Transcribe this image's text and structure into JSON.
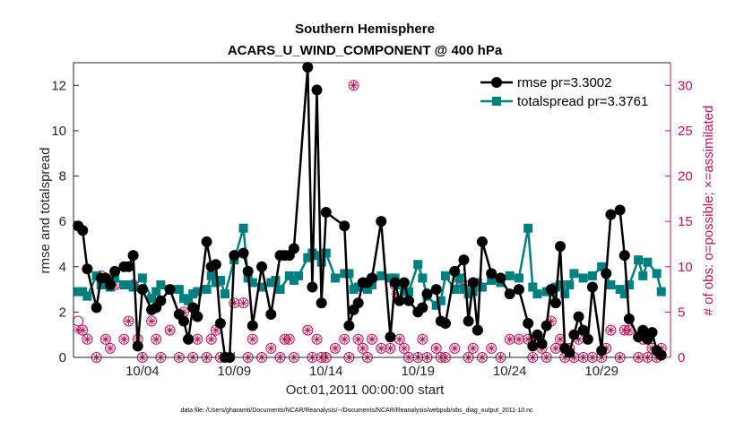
{
  "chart_data": {
    "type": "line",
    "title": [
      "Southern Hemisphere",
      "ACARS_U_WIND_COMPONENT @ 400 hPa"
    ],
    "xlabel": "Oct.01,2011 00:00:00 start",
    "ylabel": "rmse and totalspread",
    "y2label": "# of obs: o=possible; ×=assimilated",
    "footnote": "data file: /Users/gharamti/Documents/NCAR/Reanalysis/~/Documents/NCAR/Reanalysis/webpub/obs_diag_output_2011-10.nc",
    "xlim": [
      0.25,
      32.75
    ],
    "ylim": [
      0,
      13
    ],
    "y2lim": [
      0,
      32.5
    ],
    "xticks": [
      {
        "x": 4,
        "label": "10/04"
      },
      {
        "x": 9,
        "label": "10/09"
      },
      {
        "x": 14,
        "label": "10/14"
      },
      {
        "x": 19,
        "label": "10/19"
      },
      {
        "x": 24,
        "label": "10/24"
      },
      {
        "x": 29,
        "label": "10/29"
      }
    ],
    "yticks": [
      0,
      2,
      4,
      6,
      8,
      10,
      12
    ],
    "y2ticks": [
      0,
      5,
      10,
      15,
      20,
      25,
      30
    ],
    "colors": {
      "rmse": "#000000",
      "spread": "#007f7f",
      "obs": "#c0145a",
      "axis": "#262626"
    },
    "legend": {
      "position": "top-right",
      "entries": [
        "rmse pr=3.3002",
        "totalspread pr=3.3761"
      ]
    },
    "series": [
      {
        "name": "rmse",
        "label": "rmse pr=3.3002",
        "x": [
          0.5,
          0.75,
          1.0,
          1.5,
          1.75,
          2.0,
          2.25,
          2.5,
          3.0,
          3.25,
          3.5,
          3.75,
          4.0,
          4.5,
          4.75,
          5.0,
          5.5,
          6.0,
          6.25,
          6.5,
          6.75,
          7.0,
          7.5,
          7.75,
          8.0,
          8.25,
          8.5,
          8.75,
          9.0,
          9.5,
          9.75,
          10.0,
          10.5,
          11.0,
          11.5,
          11.75,
          12.0,
          12.25,
          13.0,
          13.25,
          13.5,
          13.75,
          14.0,
          15.0,
          15.25,
          15.5,
          15.75,
          16.0,
          16.25,
          16.5,
          17.0,
          17.5,
          17.75,
          18.0,
          18.25,
          18.5,
          19.0,
          19.25,
          19.5,
          20.0,
          20.25,
          20.5,
          21.0,
          21.5,
          21.75,
          22.0,
          22.25,
          22.5,
          23.0,
          23.5,
          24.0,
          24.5,
          25.0,
          25.25,
          25.5,
          25.75,
          26.0,
          26.25,
          26.5,
          26.75,
          27.0,
          27.25,
          27.5,
          27.75,
          28.0,
          28.25,
          28.5,
          29.0,
          29.25,
          29.5,
          30.0,
          30.25,
          30.5,
          31.0,
          31.25,
          31.5,
          31.75,
          32.0,
          32.25
        ],
        "values": [
          5.8,
          5.6,
          3.9,
          2.2,
          3.5,
          3.5,
          3.2,
          3.8,
          4.0,
          4.0,
          4.5,
          0.5,
          3.0,
          2.1,
          2.2,
          2.5,
          3.0,
          1.9,
          1.6,
          0.8,
          2.2,
          1.8,
          5.1,
          4.0,
          4.1,
          1.5,
          0.0,
          0.0,
          4.5,
          4.6,
          3.8,
          1.4,
          4.0,
          1.9,
          4.5,
          4.5,
          4.5,
          4.8,
          12.8,
          3.1,
          11.8,
          2.4,
          6.4,
          5.8,
          1.4,
          2.1,
          2.4,
          3.3,
          3.3,
          3.5,
          6.0,
          0.9,
          3.3,
          2.5,
          3.3,
          2.5,
          2.0,
          2.2,
          2.8,
          3.0,
          1.6,
          1.5,
          3.8,
          4.3,
          1.6,
          3.3,
          1.2,
          5.1,
          3.7,
          3.5,
          2.8,
          3.0,
          1.5,
          0.5,
          1.0,
          0.6,
          1.4,
          3.0,
          2.4,
          4.9,
          0.4,
          0.2,
          1.0,
          1.8,
          1.2,
          0.8,
          3.1,
          0.3,
          3.7,
          6.3,
          6.5,
          4.5,
          1.7,
          0.9,
          1.2,
          0.8,
          1.1,
          0.3,
          0.1
        ]
      },
      {
        "name": "totalspread",
        "label": "totalspread pr=3.3761",
        "x": [
          0.5,
          0.75,
          1.0,
          1.5,
          1.75,
          2.0,
          2.25,
          2.5,
          3.0,
          3.25,
          3.5,
          4.0,
          4.5,
          4.75,
          5.0,
          5.5,
          6.0,
          6.25,
          6.5,
          6.75,
          7.0,
          7.5,
          7.75,
          8.0,
          8.25,
          8.5,
          9.0,
          9.5,
          9.75,
          10.0,
          10.5,
          11.0,
          11.25,
          11.5,
          12.0,
          12.25,
          12.5,
          13.0,
          13.25,
          13.5,
          13.75,
          14.0,
          14.5,
          15.0,
          15.25,
          15.5,
          15.75,
          16.0,
          16.25,
          16.5,
          17.0,
          17.5,
          17.75,
          18.0,
          18.25,
          18.5,
          19.0,
          19.25,
          19.5,
          20.0,
          20.25,
          20.5,
          21.0,
          21.25,
          21.5,
          21.75,
          22.0,
          22.25,
          22.5,
          23.0,
          23.5,
          24.0,
          24.5,
          25.0,
          25.25,
          25.5,
          26.0,
          26.25,
          26.5,
          26.75,
          27.0,
          27.25,
          27.5,
          28.0,
          28.5,
          29.0,
          29.5,
          30.0,
          30.25,
          30.5,
          31.0,
          31.25,
          31.5,
          32.0,
          32.25
        ],
        "values": [
          2.9,
          2.9,
          2.7,
          3.6,
          3.2,
          3.2,
          3.1,
          3.5,
          3.2,
          3.2,
          3.1,
          3.5,
          2.6,
          2.9,
          3.2,
          3.0,
          3.0,
          2.6,
          2.5,
          2.8,
          2.9,
          3.0,
          3.6,
          3.3,
          3.4,
          2.8,
          4.3,
          5.7,
          3.5,
          3.3,
          3.1,
          3.3,
          3.4,
          3.0,
          3.6,
          3.4,
          3.6,
          4.4,
          4.6,
          4.5,
          4.2,
          4.6,
          3.5,
          3.7,
          3.7,
          3.0,
          3.1,
          3.1,
          3.0,
          3.2,
          3.6,
          3.5,
          3.5,
          3.2,
          2.9,
          2.9,
          4.1,
          3.5,
          2.7,
          2.3,
          2.5,
          3.6,
          3.0,
          3.5,
          3.0,
          2.8,
          2.9,
          3.3,
          3.1,
          3.4,
          3.3,
          3.6,
          3.5,
          5.7,
          3.1,
          2.8,
          2.9,
          2.9,
          3.1,
          3.2,
          2.8,
          3.2,
          3.7,
          3.5,
          3.6,
          4.0,
          3.2,
          3.0,
          2.8,
          3.2,
          4.3,
          3.6,
          4.2,
          3.7,
          2.9
        ]
      },
      {
        "name": "obs_possible",
        "label": "o=possible",
        "x": [
          0.5,
          0.75,
          1.0,
          1.5,
          1.75,
          2.0,
          2.25,
          2.5,
          3.0,
          3.25,
          3.5,
          3.75,
          4.0,
          4.5,
          4.75,
          5.0,
          5.5,
          6.0,
          6.25,
          6.5,
          6.75,
          7.0,
          7.5,
          7.75,
          8.0,
          8.25,
          8.5,
          8.75,
          9.0,
          9.5,
          9.75,
          10.0,
          10.5,
          11.0,
          11.5,
          11.75,
          12.0,
          12.25,
          13.0,
          13.25,
          13.5,
          13.75,
          14.0,
          14.5,
          15.0,
          15.25,
          15.5,
          15.75,
          16.0,
          16.25,
          16.5,
          17.0,
          17.5,
          17.75,
          18.0,
          18.25,
          18.5,
          19.0,
          19.25,
          19.5,
          20.0,
          20.25,
          20.5,
          21.0,
          21.5,
          21.75,
          22.0,
          22.25,
          22.5,
          23.0,
          23.5,
          24.0,
          24.5,
          25.0,
          25.25,
          25.5,
          25.75,
          26.0,
          26.25,
          26.5,
          26.75,
          27.0,
          27.25,
          27.5,
          27.75,
          28.0,
          28.25,
          28.5,
          29.0,
          29.25,
          29.5,
          30.0,
          30.25,
          30.5,
          31.0,
          31.25,
          31.5,
          31.75,
          32.0,
          32.25
        ],
        "values": [
          4,
          3,
          2,
          0,
          9,
          2,
          1,
          8,
          2,
          4,
          8,
          2,
          0,
          4,
          2,
          0,
          3,
          0,
          5,
          2,
          0,
          2,
          0,
          2,
          3,
          0,
          0,
          0,
          6,
          6,
          0,
          2,
          0,
          1,
          0,
          2,
          2,
          0,
          3,
          0,
          2,
          0,
          0,
          1,
          2,
          0,
          30,
          2,
          1,
          0,
          2,
          1,
          1,
          8,
          2,
          1,
          0,
          0,
          2,
          0,
          1,
          0,
          0,
          1,
          8,
          0,
          1,
          3,
          0,
          1,
          0,
          2,
          2,
          2,
          0,
          2,
          1,
          0,
          4,
          1,
          2,
          0,
          1,
          0,
          2,
          0,
          2,
          0,
          0,
          1,
          3,
          0,
          3,
          3,
          0,
          2,
          0,
          1,
          0,
          1
        ]
      },
      {
        "name": "obs_assimilated",
        "label": "×=assimilated",
        "x": [
          0.5,
          0.75,
          1.0,
          1.5,
          1.75,
          2.0,
          2.25,
          2.5,
          3.0,
          3.25,
          3.5,
          3.75,
          4.0,
          4.5,
          4.75,
          5.0,
          5.5,
          6.0,
          6.25,
          6.5,
          6.75,
          7.0,
          7.5,
          7.75,
          8.0,
          8.25,
          8.5,
          8.75,
          9.0,
          9.5,
          9.75,
          10.0,
          10.5,
          11.0,
          11.5,
          11.75,
          12.0,
          12.25,
          13.0,
          13.25,
          13.5,
          13.75,
          14.0,
          14.5,
          15.0,
          15.25,
          15.5,
          15.75,
          16.0,
          16.25,
          16.5,
          17.0,
          17.5,
          17.75,
          18.0,
          18.25,
          18.5,
          19.0,
          19.25,
          19.5,
          20.0,
          20.25,
          20.5,
          21.0,
          21.5,
          21.75,
          22.0,
          22.25,
          22.5,
          23.0,
          23.5,
          24.0,
          24.5,
          25.0,
          25.25,
          25.5,
          25.75,
          26.0,
          26.25,
          26.5,
          26.75,
          27.0,
          27.25,
          27.5,
          27.75,
          28.0,
          28.25,
          28.5,
          29.0,
          29.25,
          29.5,
          30.0,
          30.25,
          30.5,
          31.0,
          31.25,
          31.5,
          31.75,
          32.0,
          32.25
        ],
        "values": [
          3,
          3,
          2,
          0,
          8,
          2,
          1,
          8,
          2,
          4,
          8,
          2,
          0,
          4,
          2,
          0,
          3,
          0,
          5,
          2,
          0,
          2,
          0,
          2,
          3,
          0,
          0,
          0,
          6,
          6,
          0,
          2,
          0,
          1,
          0,
          2,
          2,
          0,
          3,
          0,
          2,
          0,
          0,
          1,
          2,
          0,
          30,
          2,
          1,
          0,
          2,
          1,
          1,
          7,
          2,
          1,
          0,
          0,
          2,
          0,
          1,
          0,
          0,
          1,
          8,
          0,
          1,
          3,
          0,
          1,
          0,
          2,
          2,
          2,
          0,
          2,
          1,
          0,
          4,
          1,
          2,
          0,
          1,
          0,
          2,
          0,
          2,
          0,
          0,
          1,
          3,
          0,
          3,
          3,
          0,
          2,
          0,
          1,
          0,
          1
        ]
      }
    ]
  }
}
